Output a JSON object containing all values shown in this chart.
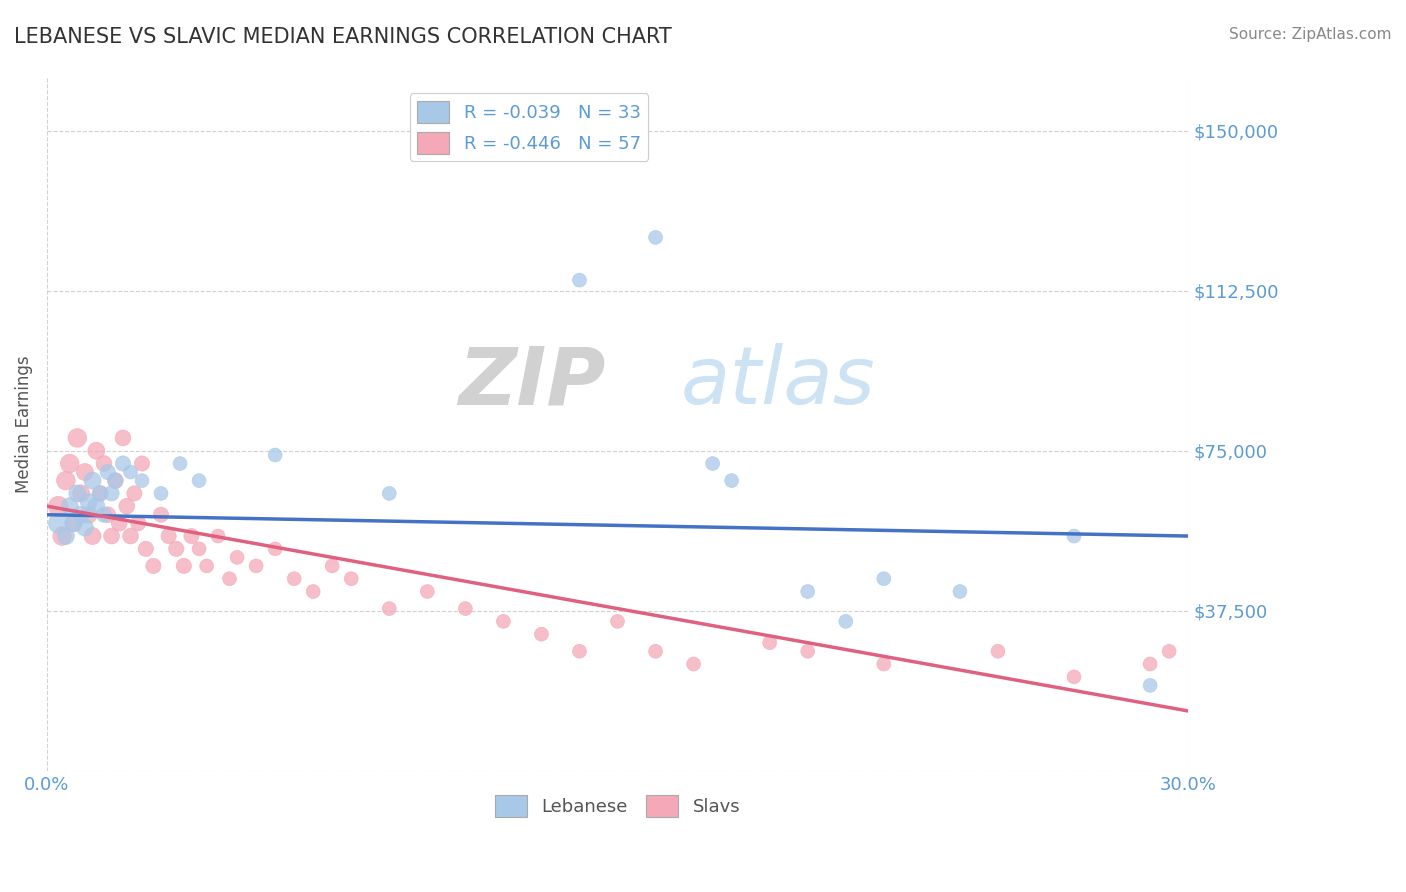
{
  "title": "LEBANESE VS SLAVIC MEDIAN EARNINGS CORRELATION CHART",
  "source": "Source: ZipAtlas.com",
  "ylabel": "Median Earnings",
  "xlim": [
    0.0,
    0.3
  ],
  "ylim": [
    0,
    162500
  ],
  "yticks": [
    0,
    37500,
    75000,
    112500,
    150000
  ],
  "ytick_labels": [
    "",
    "$37,500",
    "$75,000",
    "$112,500",
    "$150,000"
  ],
  "xticks": [
    0.0,
    0.05,
    0.1,
    0.15,
    0.2,
    0.25,
    0.3
  ],
  "xtick_labels": [
    "0.0%",
    "",
    "",
    "",
    "",
    "",
    "30.0%"
  ],
  "background_color": "#ffffff",
  "grid_color": "#cccccc",
  "axis_color": "#5b9bd5",
  "lebanese_color": "#a8c8e8",
  "slavs_color": "#f4a8b8",
  "lebanese_line_color": "#4472c4",
  "slavs_line_color": "#e06080",
  "legend_lebanese_R": "-0.039",
  "legend_lebanese_N": "33",
  "legend_slavs_R": "-0.446",
  "legend_slavs_N": "57",
  "lebanese_points": [
    [
      0.003,
      58000
    ],
    [
      0.005,
      55000
    ],
    [
      0.006,
      62000
    ],
    [
      0.007,
      58000
    ],
    [
      0.008,
      65000
    ],
    [
      0.009,
      60000
    ],
    [
      0.01,
      57000
    ],
    [
      0.011,
      63000
    ],
    [
      0.012,
      68000
    ],
    [
      0.013,
      62000
    ],
    [
      0.014,
      65000
    ],
    [
      0.015,
      60000
    ],
    [
      0.016,
      70000
    ],
    [
      0.017,
      65000
    ],
    [
      0.018,
      68000
    ],
    [
      0.02,
      72000
    ],
    [
      0.022,
      70000
    ],
    [
      0.025,
      68000
    ],
    [
      0.03,
      65000
    ],
    [
      0.035,
      72000
    ],
    [
      0.04,
      68000
    ],
    [
      0.06,
      74000
    ],
    [
      0.09,
      65000
    ],
    [
      0.14,
      115000
    ],
    [
      0.16,
      125000
    ],
    [
      0.175,
      72000
    ],
    [
      0.18,
      68000
    ],
    [
      0.2,
      42000
    ],
    [
      0.21,
      35000
    ],
    [
      0.22,
      45000
    ],
    [
      0.24,
      42000
    ],
    [
      0.27,
      55000
    ],
    [
      0.29,
      20000
    ]
  ],
  "slavs_points": [
    [
      0.003,
      62000
    ],
    [
      0.004,
      55000
    ],
    [
      0.005,
      68000
    ],
    [
      0.006,
      72000
    ],
    [
      0.007,
      58000
    ],
    [
      0.008,
      78000
    ],
    [
      0.009,
      65000
    ],
    [
      0.01,
      70000
    ],
    [
      0.011,
      60000
    ],
    [
      0.012,
      55000
    ],
    [
      0.013,
      75000
    ],
    [
      0.014,
      65000
    ],
    [
      0.015,
      72000
    ],
    [
      0.016,
      60000
    ],
    [
      0.017,
      55000
    ],
    [
      0.018,
      68000
    ],
    [
      0.019,
      58000
    ],
    [
      0.02,
      78000
    ],
    [
      0.021,
      62000
    ],
    [
      0.022,
      55000
    ],
    [
      0.023,
      65000
    ],
    [
      0.024,
      58000
    ],
    [
      0.025,
      72000
    ],
    [
      0.026,
      52000
    ],
    [
      0.028,
      48000
    ],
    [
      0.03,
      60000
    ],
    [
      0.032,
      55000
    ],
    [
      0.034,
      52000
    ],
    [
      0.036,
      48000
    ],
    [
      0.038,
      55000
    ],
    [
      0.04,
      52000
    ],
    [
      0.042,
      48000
    ],
    [
      0.045,
      55000
    ],
    [
      0.048,
      45000
    ],
    [
      0.05,
      50000
    ],
    [
      0.055,
      48000
    ],
    [
      0.06,
      52000
    ],
    [
      0.065,
      45000
    ],
    [
      0.07,
      42000
    ],
    [
      0.075,
      48000
    ],
    [
      0.08,
      45000
    ],
    [
      0.09,
      38000
    ],
    [
      0.1,
      42000
    ],
    [
      0.11,
      38000
    ],
    [
      0.12,
      35000
    ],
    [
      0.13,
      32000
    ],
    [
      0.14,
      28000
    ],
    [
      0.15,
      35000
    ],
    [
      0.16,
      28000
    ],
    [
      0.17,
      25000
    ],
    [
      0.19,
      30000
    ],
    [
      0.2,
      28000
    ],
    [
      0.22,
      25000
    ],
    [
      0.25,
      28000
    ],
    [
      0.27,
      22000
    ],
    [
      0.29,
      25000
    ],
    [
      0.295,
      28000
    ]
  ],
  "lebanese_sizes": [
    200,
    150,
    150,
    150,
    150,
    150,
    150,
    150,
    150,
    150,
    120,
    120,
    120,
    120,
    120,
    120,
    100,
    100,
    100,
    100,
    100,
    100,
    100,
    100,
    100,
    100,
    100,
    100,
    100,
    100,
    100,
    100,
    100
  ],
  "slavs_sizes": [
    200,
    180,
    180,
    180,
    150,
    180,
    150,
    150,
    150,
    150,
    150,
    130,
    130,
    130,
    130,
    130,
    130,
    130,
    130,
    130,
    120,
    120,
    120,
    120,
    120,
    120,
    120,
    120,
    120,
    120,
    100,
    100,
    100,
    100,
    100,
    100,
    100,
    100,
    100,
    100,
    100,
    100,
    100,
    100,
    100,
    100,
    100,
    100,
    100,
    100,
    100,
    100,
    100,
    100,
    100,
    100,
    100
  ]
}
